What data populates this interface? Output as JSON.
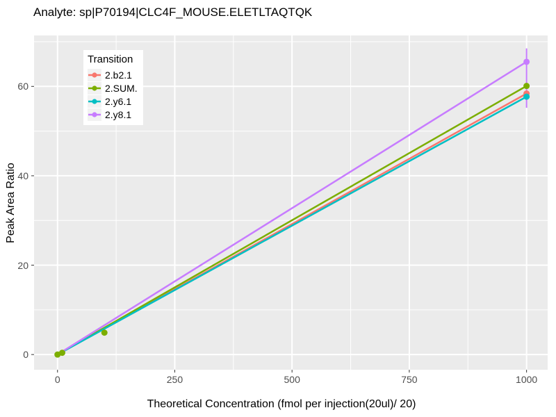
{
  "chart_data": {
    "type": "line",
    "title": "Analyte: sp|P70194|CLC4F_MOUSE.ELETLTAQTQK",
    "xlabel": "Theoretical Concentration (fmol per injection(20ul)/ 20)",
    "ylabel": "Peak Area Ratio",
    "legend_title": "Transition",
    "legend_position": "top-left-inside",
    "panel_bg": "#EBEBEB",
    "grid_color": "#FFFFFF",
    "tick_label_color": "#4D4D4D",
    "xlim": [
      -50,
      1045
    ],
    "ylim": [
      -3.4,
      71.4
    ],
    "x_ticks": [
      0,
      250,
      500,
      750,
      1000
    ],
    "y_ticks": [
      0,
      20,
      40,
      60
    ],
    "x_minor": [
      125,
      375,
      625,
      875
    ],
    "y_minor": [
      10,
      30,
      50,
      70
    ],
    "series": [
      {
        "name": "2.b2.1",
        "color": "#F8766D",
        "line": [
          [
            0,
            0
          ],
          [
            1000,
            58.4
          ]
        ],
        "points": [
          [
            1000,
            58.4
          ]
        ]
      },
      {
        "name": "2.SUM.",
        "color": "#7CAE00",
        "line": [
          [
            0,
            0
          ],
          [
            1000,
            60.1
          ]
        ],
        "points": [
          [
            0,
            0
          ],
          [
            10,
            0.4
          ],
          [
            100,
            4.9
          ],
          [
            1000,
            60.1
          ]
        ]
      },
      {
        "name": "2.y6.1",
        "color": "#00BFC4",
        "line": [
          [
            0,
            0
          ],
          [
            1000,
            57.7
          ]
        ],
        "points": [
          [
            1000,
            57.7
          ]
        ]
      },
      {
        "name": "2.y8.1",
        "color": "#C77CFF",
        "line": [
          [
            0,
            0
          ],
          [
            1000,
            65.5
          ]
        ],
        "points": [
          [
            1000,
            65.5
          ]
        ],
        "error_bar": {
          "x": 1000,
          "low": 55.2,
          "high": 68.5
        }
      }
    ]
  }
}
